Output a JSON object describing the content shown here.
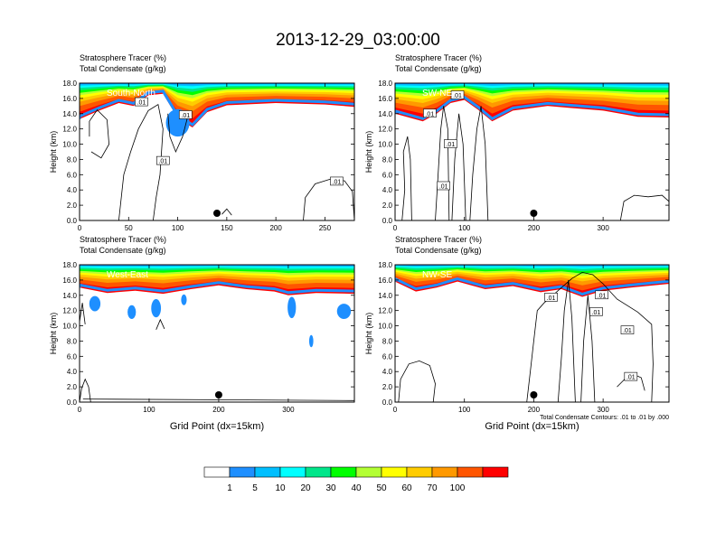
{
  "title": "2013-12-29_03:00:00",
  "colors": {
    "frame": "#000000",
    "contour": "#000000",
    "label_white": "#ffffff"
  },
  "chart_data": [
    {
      "type": "contour_cross_section",
      "panel": "top-left",
      "header_line1": "Stratosphere Tracer   (%)",
      "header_line2": "Total Condensate   (g/kg)",
      "label": "South-North",
      "ylabel": "Height (km)",
      "xlabel": "",
      "xlim": [
        0,
        280
      ],
      "xticks": [
        0,
        50,
        100,
        150,
        200,
        250
      ],
      "ylim": [
        0,
        18
      ],
      "yticks": [
        "0.0",
        "2.0",
        "4.0",
        "6.0",
        "8.0",
        "10.0",
        "12.0",
        "14.0",
        "16.0",
        "18.0"
      ],
      "marker_x": 140,
      "contour_labels": [
        {
          "text": ".01",
          "x": 63,
          "y": 15.5
        },
        {
          "text": ".01",
          "x": 108,
          "y": 13.8
        },
        {
          "text": ".01",
          "x": 85,
          "y": 7.8
        },
        {
          "text": ".01",
          "x": 262,
          "y": 5.1
        }
      ],
      "tracer_top": [
        [
          0,
          13.3
        ],
        [
          20,
          14.4
        ],
        [
          40,
          15.4
        ],
        [
          55,
          15.0
        ],
        [
          70,
          16.4
        ],
        [
          85,
          16.6
        ],
        [
          100,
          13.4
        ],
        [
          115,
          12.2
        ],
        [
          130,
          14.2
        ],
        [
          150,
          15.1
        ],
        [
          200,
          15.4
        ],
        [
          250,
          15.2
        ],
        [
          280,
          14.9
        ]
      ],
      "deep_blobs": [
        {
          "x": 100,
          "y": 12.8,
          "rx": 12,
          "ry": 1.8
        }
      ],
      "contour_lines": [
        [
          [
            10,
            11
          ],
          [
            10,
            13
          ],
          [
            18,
            14.5
          ],
          [
            28,
            13.2
          ],
          [
            30,
            10
          ],
          [
            22,
            8.2
          ],
          [
            12,
            9
          ]
        ],
        [
          [
            40,
            0
          ],
          [
            45,
            6
          ],
          [
            52,
            9
          ],
          [
            60,
            12
          ],
          [
            70,
            14.4
          ],
          [
            80,
            15.2
          ],
          [
            85,
            12
          ],
          [
            82,
            6
          ],
          [
            78,
            3
          ],
          [
            75,
            0
          ]
        ],
        [
          [
            90,
            14
          ],
          [
            92,
            11
          ],
          [
            98,
            9
          ],
          [
            105,
            11
          ],
          [
            110,
            13.5
          ]
        ],
        [
          [
            228,
            0
          ],
          [
            230,
            3
          ],
          [
            240,
            4.8
          ],
          [
            255,
            5.4
          ],
          [
            270,
            5.2
          ],
          [
            278,
            3.8
          ],
          [
            280,
            0
          ]
        ],
        [
          [
            145,
            0.8
          ],
          [
            150,
            1.5
          ],
          [
            155,
            0.7
          ]
        ]
      ]
    },
    {
      "type": "contour_cross_section",
      "panel": "top-right",
      "header_line1": "Stratosphere Tracer   (%)",
      "header_line2": "Total Condensate   (g/kg)",
      "label": "SW-NE",
      "ylabel": "Height (km)",
      "xlabel": "",
      "xlim": [
        0,
        395
      ],
      "xticks": [
        0,
        100,
        200,
        300
      ],
      "ylim": [
        0,
        18
      ],
      "yticks": [
        "0.0",
        "2.0",
        "4.0",
        "6.0",
        "8.0",
        "10.0",
        "12.0",
        "14.0",
        "16.0",
        "18.0"
      ],
      "marker_x": 200,
      "contour_labels": [
        {
          "text": ".01",
          "x": 90,
          "y": 16.4
        },
        {
          "text": ".01",
          "x": 50,
          "y": 14.0
        },
        {
          "text": ".01",
          "x": 80,
          "y": 10.0
        },
        {
          "text": ".01",
          "x": 70,
          "y": 4.5
        }
      ],
      "tracer_top": [
        [
          0,
          14.0
        ],
        [
          40,
          13.0
        ],
        [
          60,
          14.0
        ],
        [
          80,
          15.4
        ],
        [
          100,
          15.8
        ],
        [
          120,
          14.5
        ],
        [
          140,
          13.0
        ],
        [
          170,
          14.4
        ],
        [
          220,
          15.0
        ],
        [
          300,
          14.4
        ],
        [
          350,
          13.6
        ],
        [
          395,
          13.5
        ]
      ],
      "deep_blobs": [],
      "contour_lines": [
        [
          [
            10,
            0
          ],
          [
            14,
            4
          ],
          [
            12,
            9
          ],
          [
            18,
            11
          ],
          [
            22,
            8
          ],
          [
            24,
            0
          ]
        ],
        [
          [
            58,
            0
          ],
          [
            62,
            6
          ],
          [
            66,
            12
          ],
          [
            70,
            15
          ],
          [
            76,
            12
          ],
          [
            78,
            0
          ]
        ],
        [
          [
            82,
            0
          ],
          [
            86,
            8
          ],
          [
            92,
            14
          ],
          [
            98,
            10
          ],
          [
            102,
            0
          ]
        ],
        [
          [
            108,
            0
          ],
          [
            112,
            6
          ],
          [
            118,
            12
          ],
          [
            124,
            15
          ],
          [
            130,
            10
          ],
          [
            134,
            0
          ]
        ],
        [
          [
            325,
            0
          ],
          [
            330,
            2.5
          ],
          [
            345,
            3.3
          ],
          [
            365,
            3.1
          ],
          [
            385,
            3.3
          ],
          [
            395,
            2.5
          ],
          [
            395,
            0
          ]
        ]
      ]
    },
    {
      "type": "contour_cross_section",
      "panel": "bottom-left",
      "header_line1": "Stratosphere Tracer   (%)",
      "header_line2": "Total Condensate   (g/kg)",
      "label": "West-East",
      "ylabel": "Height (km)",
      "xlabel": "Grid Point (dx=15km)",
      "xlim": [
        0,
        395
      ],
      "xticks": [
        0,
        100,
        200,
        300
      ],
      "ylim": [
        0,
        18
      ],
      "yticks": [
        "0.0",
        "2.0",
        "4.0",
        "6.0",
        "8.0",
        "10.0",
        "12.0",
        "14.0",
        "16.0",
        "18.0"
      ],
      "marker_x": 200,
      "contour_labels": [],
      "tracer_top": [
        [
          0,
          15.0
        ],
        [
          40,
          14.3
        ],
        [
          80,
          14.6
        ],
        [
          120,
          14.2
        ],
        [
          160,
          14.8
        ],
        [
          200,
          15.3
        ],
        [
          240,
          14.8
        ],
        [
          280,
          14.5
        ],
        [
          300,
          14.0
        ],
        [
          340,
          14.3
        ],
        [
          395,
          14.2
        ]
      ],
      "deep_blobs": [
        {
          "x": 22,
          "y": 12.9,
          "rx": 8,
          "ry": 1.0
        },
        {
          "x": 75,
          "y": 11.8,
          "rx": 6,
          "ry": 0.9
        },
        {
          "x": 110,
          "y": 12.3,
          "rx": 7,
          "ry": 1.2
        },
        {
          "x": 150,
          "y": 13.4,
          "rx": 4,
          "ry": 0.7
        },
        {
          "x": 305,
          "y": 12.4,
          "rx": 6,
          "ry": 1.4
        },
        {
          "x": 333,
          "y": 8.0,
          "rx": 3,
          "ry": 0.8
        },
        {
          "x": 380,
          "y": 11.9,
          "rx": 10,
          "ry": 1.0
        }
      ],
      "contour_lines": [
        [
          [
            0,
            10.5
          ],
          [
            4,
            13
          ],
          [
            8,
            10.2
          ]
        ],
        [
          [
            0,
            0
          ],
          [
            3,
            1.8
          ],
          [
            8,
            3
          ],
          [
            13,
            2
          ],
          [
            16,
            0
          ]
        ],
        [
          [
            110,
            9.5
          ],
          [
            116,
            10.8
          ],
          [
            122,
            9.6
          ]
        ],
        [
          [
            5,
            0.4
          ],
          [
            395,
            0.2
          ]
        ]
      ]
    },
    {
      "type": "contour_cross_section",
      "panel": "bottom-right",
      "header_line1": "Stratosphere Tracer   (%)",
      "header_line2": "Total Condensate   (g/kg)",
      "label": "NW-SE",
      "ylabel": "Height (km)",
      "xlabel": "Grid Point (dx=15km)",
      "footnote": "Total Condensate Contours: .01 to .01 by .000",
      "xlim": [
        0,
        395
      ],
      "xticks": [
        0,
        100,
        200,
        300
      ],
      "ylim": [
        0,
        18
      ],
      "yticks": [
        "0.0",
        "2.0",
        "4.0",
        "6.0",
        "8.0",
        "10.0",
        "12.0",
        "14.0",
        "16.0",
        "18.0"
      ],
      "marker_x": 200,
      "contour_labels": [
        {
          "text": ".01",
          "x": 225,
          "y": 13.7
        },
        {
          "text": ".01",
          "x": 298,
          "y": 14.0
        },
        {
          "text": ".01",
          "x": 290,
          "y": 11.8
        },
        {
          "text": ".01",
          "x": 335,
          "y": 9.4
        },
        {
          "text": ".01",
          "x": 340,
          "y": 3.3
        }
      ],
      "tracer_top": [
        [
          0,
          15.8
        ],
        [
          30,
          14.5
        ],
        [
          60,
          15.0
        ],
        [
          90,
          15.8
        ],
        [
          130,
          14.8
        ],
        [
          170,
          15.2
        ],
        [
          210,
          14.4
        ],
        [
          240,
          14.8
        ],
        [
          270,
          13.8
        ],
        [
          300,
          14.6
        ],
        [
          340,
          15.0
        ],
        [
          395,
          15.5
        ]
      ],
      "deep_blobs": [],
      "contour_lines": [
        [
          [
            5,
            0
          ],
          [
            8,
            3
          ],
          [
            20,
            5
          ],
          [
            35,
            5.4
          ],
          [
            50,
            4.8
          ],
          [
            58,
            2.4
          ],
          [
            55,
            0
          ]
        ],
        [
          [
            190,
            0
          ],
          [
            195,
            4
          ],
          [
            200,
            8
          ],
          [
            205,
            12
          ],
          [
            215,
            13
          ],
          [
            240,
            15
          ],
          [
            255,
            16.2
          ],
          [
            270,
            17
          ],
          [
            285,
            16.7
          ],
          [
            300,
            15.5
          ],
          [
            320,
            13.5
          ],
          [
            350,
            11.8
          ],
          [
            370,
            10.2
          ],
          [
            372,
            5
          ],
          [
            370,
            0
          ]
        ],
        [
          [
            235,
            0
          ],
          [
            240,
            6
          ],
          [
            244,
            12
          ],
          [
            250,
            16
          ],
          [
            255,
            11
          ],
          [
            260,
            0
          ]
        ],
        [
          [
            268,
            0
          ],
          [
            272,
            8
          ],
          [
            278,
            14
          ],
          [
            284,
            8
          ],
          [
            288,
            0
          ]
        ],
        [
          [
            320,
            2
          ],
          [
            340,
            3.8
          ],
          [
            355,
            3.2
          ],
          [
            360,
            1.5
          ]
        ]
      ]
    }
  ],
  "colorbar": {
    "labels": [
      "1",
      "5",
      "10",
      "20",
      "30",
      "40",
      "50",
      "60",
      "70",
      "100"
    ],
    "colors": [
      "#ffffff",
      "#1e8fff",
      "#00bfff",
      "#00ffff",
      "#00e68a",
      "#00ff00",
      "#b3ff33",
      "#ffff00",
      "#ffcc00",
      "#ff9900",
      "#ff5500",
      "#ff0000"
    ]
  }
}
